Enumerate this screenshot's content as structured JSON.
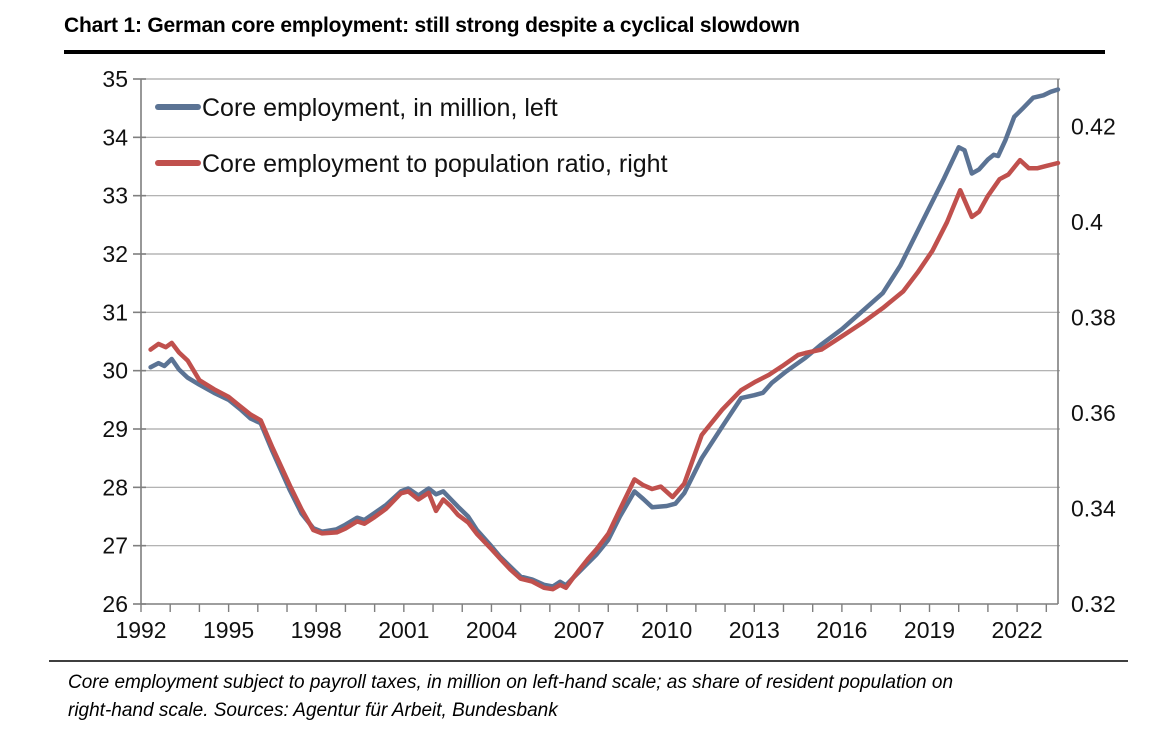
{
  "page": {
    "title": "Chart 1: German core employment: still strong despite a cyclical slowdown",
    "footnote_line1": "Core employment subject to payroll taxes, in million on left-hand scale; as share of resident population on",
    "footnote_line2": "right-hand scale. Sources: Agentur für Arbeit, Bundesbank"
  },
  "chart_data": {
    "type": "line",
    "title": "Chart 1: German core employment: still strong despite a cyclical slowdown",
    "legend_position": "top-left",
    "grid": "horizontal",
    "colors": {
      "gridline": "#a8a8a8",
      "axis": "#7f7f7f",
      "tick_label": "#111111"
    },
    "x_axis": {
      "min": 1992,
      "max": 2023.4,
      "minor_tick_step": 1,
      "label_years": [
        1992,
        1995,
        1998,
        2001,
        2004,
        2007,
        2010,
        2013,
        2016,
        2019,
        2022
      ]
    },
    "left_axis": {
      "min": 26,
      "max": 35,
      "tick_values": [
        26,
        27,
        28,
        29,
        30,
        31,
        32,
        33,
        34,
        35
      ]
    },
    "right_axis": {
      "min": 0.32,
      "max": 0.43,
      "tick_values": [
        0.32,
        0.34,
        0.36,
        0.38,
        0.4,
        0.42
      ],
      "tick_labels": [
        "0.32",
        "0.34",
        "0.36",
        "0.38",
        "0.4",
        "0.42"
      ]
    },
    "series": [
      {
        "name": "Core employment, in million, left",
        "axis": "left",
        "color": "#5b7394",
        "points": [
          [
            1992.33,
            30.06
          ],
          [
            1992.6,
            30.13
          ],
          [
            1992.8,
            30.08
          ],
          [
            1993.05,
            30.2
          ],
          [
            1993.3,
            30.02
          ],
          [
            1993.6,
            29.88
          ],
          [
            1994.0,
            29.76
          ],
          [
            1994.5,
            29.62
          ],
          [
            1995.0,
            29.5
          ],
          [
            1995.4,
            29.34
          ],
          [
            1995.75,
            29.18
          ],
          [
            1996.1,
            29.1
          ],
          [
            1996.5,
            28.62
          ],
          [
            1997.1,
            27.95
          ],
          [
            1997.5,
            27.55
          ],
          [
            1997.9,
            27.3
          ],
          [
            1998.2,
            27.24
          ],
          [
            1998.7,
            27.28
          ],
          [
            1999.0,
            27.36
          ],
          [
            1999.4,
            27.48
          ],
          [
            1999.65,
            27.44
          ],
          [
            2000.0,
            27.56
          ],
          [
            2000.4,
            27.7
          ],
          [
            2000.9,
            27.93
          ],
          [
            2001.15,
            27.98
          ],
          [
            2001.5,
            27.86
          ],
          [
            2001.85,
            27.98
          ],
          [
            2002.1,
            27.88
          ],
          [
            2002.35,
            27.93
          ],
          [
            2002.6,
            27.8
          ],
          [
            2002.85,
            27.67
          ],
          [
            2003.2,
            27.5
          ],
          [
            2003.5,
            27.27
          ],
          [
            2004.0,
            26.99
          ],
          [
            2004.3,
            26.81
          ],
          [
            2004.65,
            26.64
          ],
          [
            2005.0,
            26.47
          ],
          [
            2005.4,
            26.42
          ],
          [
            2005.8,
            26.33
          ],
          [
            2006.1,
            26.3
          ],
          [
            2006.35,
            26.38
          ],
          [
            2006.55,
            26.32
          ],
          [
            2006.8,
            26.45
          ],
          [
            2007.0,
            26.55
          ],
          [
            2007.3,
            26.7
          ],
          [
            2007.6,
            26.85
          ],
          [
            2008.0,
            27.1
          ],
          [
            2008.4,
            27.5
          ],
          [
            2008.9,
            27.93
          ],
          [
            2009.2,
            27.8
          ],
          [
            2009.5,
            27.66
          ],
          [
            2010.0,
            27.68
          ],
          [
            2010.3,
            27.72
          ],
          [
            2010.6,
            27.9
          ],
          [
            2011.2,
            28.5
          ],
          [
            2011.9,
            29.04
          ],
          [
            2012.55,
            29.53
          ],
          [
            2013.0,
            29.58
          ],
          [
            2013.3,
            29.62
          ],
          [
            2013.6,
            29.79
          ],
          [
            2014.1,
            29.99
          ],
          [
            2014.75,
            30.22
          ],
          [
            2015.3,
            30.45
          ],
          [
            2016.0,
            30.71
          ],
          [
            2016.7,
            31.02
          ],
          [
            2017.4,
            31.33
          ],
          [
            2018.0,
            31.8
          ],
          [
            2018.5,
            32.3
          ],
          [
            2019.0,
            32.8
          ],
          [
            2019.5,
            33.3
          ],
          [
            2020.0,
            33.83
          ],
          [
            2020.2,
            33.78
          ],
          [
            2020.45,
            33.38
          ],
          [
            2020.7,
            33.45
          ],
          [
            2021.0,
            33.62
          ],
          [
            2021.2,
            33.7
          ],
          [
            2021.35,
            33.68
          ],
          [
            2021.6,
            33.95
          ],
          [
            2021.9,
            34.35
          ],
          [
            2022.2,
            34.5
          ],
          [
            2022.55,
            34.68
          ],
          [
            2022.9,
            34.72
          ],
          [
            2023.15,
            34.78
          ],
          [
            2023.4,
            34.82
          ]
        ]
      },
      {
        "name": "Core employment to population ratio, right",
        "axis": "right",
        "color": "#c0504d",
        "points": [
          [
            1992.33,
            0.3733
          ],
          [
            1992.6,
            0.3745
          ],
          [
            1992.85,
            0.3738
          ],
          [
            1993.05,
            0.3747
          ],
          [
            1993.3,
            0.3727
          ],
          [
            1993.6,
            0.371
          ],
          [
            1994.0,
            0.3669
          ],
          [
            1994.5,
            0.365
          ],
          [
            1995.0,
            0.3634
          ],
          [
            1995.4,
            0.3614
          ],
          [
            1995.75,
            0.3597
          ],
          [
            1996.1,
            0.3585
          ],
          [
            1996.5,
            0.3528
          ],
          [
            1997.1,
            0.3448
          ],
          [
            1997.5,
            0.3398
          ],
          [
            1997.9,
            0.3355
          ],
          [
            1998.2,
            0.3348
          ],
          [
            1998.7,
            0.335
          ],
          [
            1999.0,
            0.3358
          ],
          [
            1999.4,
            0.3373
          ],
          [
            1999.65,
            0.3368
          ],
          [
            2000.0,
            0.3382
          ],
          [
            2000.4,
            0.34
          ],
          [
            2000.9,
            0.3432
          ],
          [
            2001.15,
            0.3436
          ],
          [
            2001.5,
            0.3419
          ],
          [
            2001.85,
            0.3433
          ],
          [
            2002.1,
            0.3395
          ],
          [
            2002.35,
            0.3419
          ],
          [
            2002.6,
            0.3405
          ],
          [
            2002.85,
            0.3387
          ],
          [
            2003.2,
            0.3371
          ],
          [
            2003.5,
            0.3347
          ],
          [
            2004.0,
            0.3315
          ],
          [
            2004.3,
            0.3295
          ],
          [
            2004.65,
            0.3272
          ],
          [
            2005.0,
            0.3253
          ],
          [
            2005.4,
            0.3247
          ],
          [
            2005.8,
            0.3234
          ],
          [
            2006.1,
            0.3231
          ],
          [
            2006.35,
            0.324
          ],
          [
            2006.55,
            0.3234
          ],
          [
            2006.8,
            0.3255
          ],
          [
            2007.0,
            0.3271
          ],
          [
            2007.3,
            0.3294
          ],
          [
            2007.6,
            0.3315
          ],
          [
            2008.0,
            0.3347
          ],
          [
            2008.4,
            0.3398
          ],
          [
            2008.9,
            0.3461
          ],
          [
            2009.2,
            0.3449
          ],
          [
            2009.5,
            0.3441
          ],
          [
            2009.8,
            0.3446
          ],
          [
            2010.2,
            0.3424
          ],
          [
            2010.6,
            0.3452
          ],
          [
            2011.2,
            0.3554
          ],
          [
            2011.9,
            0.3607
          ],
          [
            2012.55,
            0.3648
          ],
          [
            2013.05,
            0.3666
          ],
          [
            2013.5,
            0.368
          ],
          [
            2013.95,
            0.3698
          ],
          [
            2014.5,
            0.3722
          ],
          [
            2014.75,
            0.3726
          ],
          [
            2015.3,
            0.3733
          ],
          [
            2016.0,
            0.3761
          ],
          [
            2016.7,
            0.3789
          ],
          [
            2017.4,
            0.382
          ],
          [
            2018.1,
            0.3855
          ],
          [
            2018.6,
            0.3895
          ],
          [
            2019.1,
            0.394
          ],
          [
            2019.6,
            0.4
          ],
          [
            2020.05,
            0.4067
          ],
          [
            2020.45,
            0.4011
          ],
          [
            2020.7,
            0.4022
          ],
          [
            2021.0,
            0.4055
          ],
          [
            2021.4,
            0.409
          ],
          [
            2021.7,
            0.41
          ],
          [
            2022.1,
            0.413
          ],
          [
            2022.4,
            0.4113
          ],
          [
            2022.7,
            0.4113
          ],
          [
            2023.0,
            0.4118
          ],
          [
            2023.4,
            0.4124
          ]
        ]
      }
    ]
  }
}
